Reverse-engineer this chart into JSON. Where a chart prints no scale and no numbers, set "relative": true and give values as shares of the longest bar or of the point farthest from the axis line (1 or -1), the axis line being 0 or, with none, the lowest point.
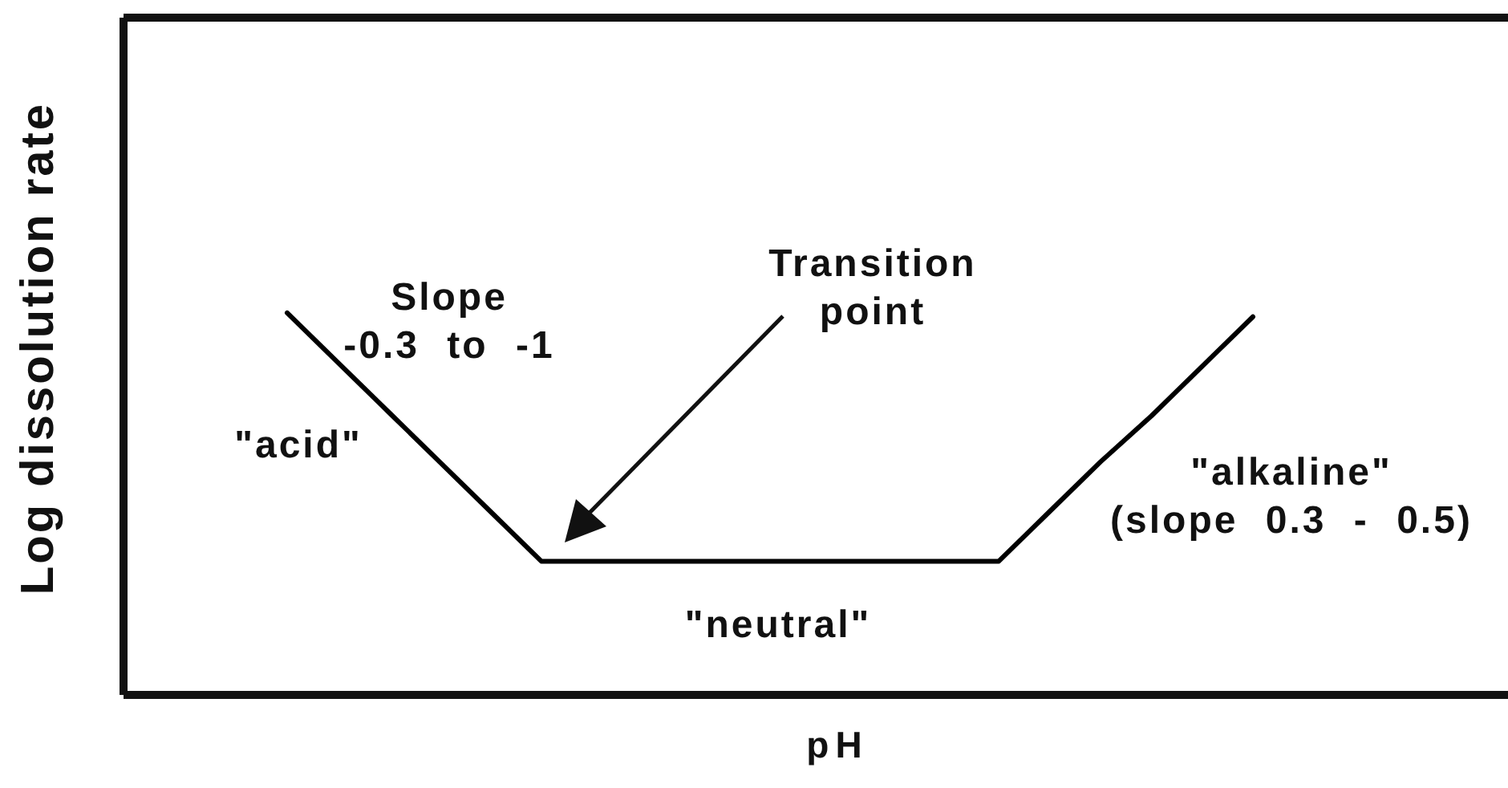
{
  "chart_data": {
    "type": "line",
    "xlabel": "pH",
    "ylabel": "Log dissolution rate",
    "relative": true,
    "categories": [
      null,
      null,
      null,
      null,
      null,
      null,
      null,
      null,
      null,
      null,
      null,
      null,
      null,
      null,
      null,
      null,
      null,
      null,
      null,
      null
    ],
    "values": [
      1,
      0.87,
      0.74,
      0.61,
      0.48,
      0.35,
      0.35,
      0.35,
      0.35,
      0.35,
      0.35,
      0.35,
      0.35,
      0.35,
      0.35,
      0.48,
      0.61,
      0.73,
      0.86,
      0.99
    ],
    "color": "#000000",
    "annotations": [
      "Slope\n-0.3 to -1",
      "Transition\npoint",
      "\"acid\"",
      "\"neutral\"",
      "\"alkaline\"\n(slope 0.3 - 0.5)"
    ]
  }
}
